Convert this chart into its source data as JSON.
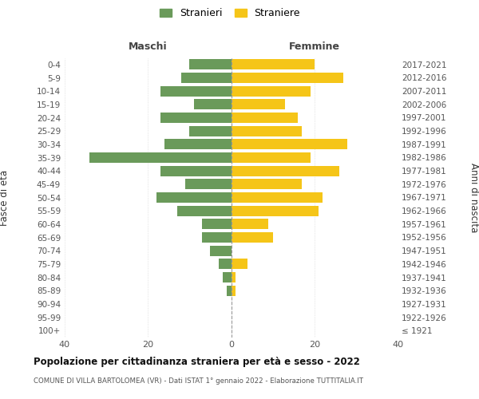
{
  "age_groups": [
    "100+",
    "95-99",
    "90-94",
    "85-89",
    "80-84",
    "75-79",
    "70-74",
    "65-69",
    "60-64",
    "55-59",
    "50-54",
    "45-49",
    "40-44",
    "35-39",
    "30-34",
    "25-29",
    "20-24",
    "15-19",
    "10-14",
    "5-9",
    "0-4"
  ],
  "birth_years": [
    "≤ 1921",
    "1922-1926",
    "1927-1931",
    "1932-1936",
    "1937-1941",
    "1942-1946",
    "1947-1951",
    "1952-1956",
    "1957-1961",
    "1962-1966",
    "1967-1971",
    "1972-1976",
    "1977-1981",
    "1982-1986",
    "1987-1991",
    "1992-1996",
    "1997-2001",
    "2002-2006",
    "2007-2011",
    "2012-2016",
    "2017-2021"
  ],
  "maschi": [
    0,
    0,
    0,
    1,
    2,
    3,
    5,
    7,
    7,
    13,
    18,
    11,
    17,
    34,
    16,
    10,
    17,
    9,
    17,
    12,
    10
  ],
  "femmine": [
    0,
    0,
    0,
    1,
    1,
    4,
    0,
    10,
    9,
    21,
    22,
    17,
    26,
    19,
    28,
    17,
    16,
    13,
    19,
    27,
    20
  ],
  "maschi_color": "#6a9a5a",
  "femmine_color": "#f5c518",
  "title": "Popolazione per cittadinanza straniera per età e sesso - 2022",
  "subtitle": "COMUNE DI VILLA BARTOLOMEA (VR) - Dati ISTAT 1° gennaio 2022 - Elaborazione TUTTITALIA.IT",
  "ylabel_left": "Fasce di età",
  "ylabel_right": "Anni di nascita",
  "xlabel_left": "Maschi",
  "xlabel_top_right": "Femmine",
  "legend_maschi": "Stranieri",
  "legend_femmine": "Straniere",
  "xlim": 40,
  "background_color": "#ffffff",
  "grid_color": "#d0d0d0"
}
